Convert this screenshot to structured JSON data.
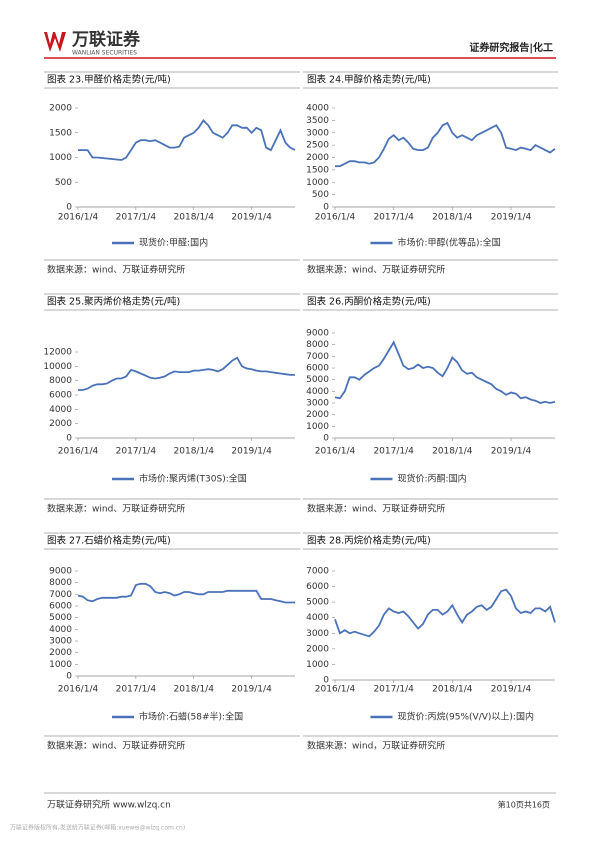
{
  "header": {
    "logo": "万联证券",
    "logo_en": "WANLIAN SECURITIES",
    "report": "证券研究报告|化工"
  },
  "footer": {
    "org": "万联证券研究所 www.wlzq.cn",
    "page": "第10页共16页",
    "copyright": "万联证券版权所有,发送给万联证券(邮箱:xuewei@wlzq.com.cn)"
  },
  "chart_data": [
    {
      "type": "line",
      "title": "图表 23.甲醛价格走势(元/吨)",
      "source": "数据来源：wind、万联证券研究所",
      "x": [
        "2016/1/4",
        "2016/2/4",
        "2016/3/4",
        "2016/4/4",
        "2016/5/4",
        "2016/6/4",
        "2016/7/4",
        "2016/8/4",
        "2016/9/4",
        "2016/10/4",
        "2016/11/4",
        "2016/12/4",
        "2017/1/4",
        "2017/2/4",
        "2017/3/4",
        "2017/4/4",
        "2017/5/4",
        "2017/6/4",
        "2017/7/4",
        "2017/8/4",
        "2017/9/4",
        "2017/10/4",
        "2017/11/4",
        "2017/12/4",
        "2018/1/4",
        "2018/2/4",
        "2018/3/4",
        "2018/4/4",
        "2018/5/4",
        "2018/6/4",
        "2018/7/4",
        "2018/8/4",
        "2018/9/4",
        "2018/10/4",
        "2018/11/4",
        "2018/12/4",
        "2019/1/4",
        "2019/2/4",
        "2019/3/4",
        "2019/4/4",
        "2019/5/4",
        "2019/6/4",
        "2019/7/4",
        "2019/8/4",
        "2019/9/4",
        "2019/10/4"
      ],
      "xticks": [
        "2016/1/4",
        "2017/1/4",
        "2018/1/4",
        "2019/1/4"
      ],
      "ylim": [
        0,
        2000
      ],
      "yticks": [
        0,
        500,
        1000,
        1500,
        2000
      ],
      "series": [
        {
          "name": "现货价:甲醛:国内",
          "color": "#4a72b8",
          "values": [
            1150,
            1150,
            1150,
            1000,
            1000,
            990,
            980,
            970,
            960,
            950,
            1000,
            1150,
            1300,
            1350,
            1350,
            1330,
            1350,
            1300,
            1250,
            1200,
            1200,
            1220,
            1400,
            1450,
            1500,
            1600,
            1750,
            1650,
            1500,
            1450,
            1400,
            1500,
            1650,
            1650,
            1600,
            1600,
            1500,
            1600,
            1550,
            1200,
            1150,
            1350,
            1550,
            1300,
            1200,
            1150
          ]
        }
      ]
    },
    {
      "type": "line",
      "title": "图表 24.甲醇价格走势(元/吨)",
      "source": "数据来源：wind、万联证券研究所",
      "x": [
        "2016/1/4",
        "2016/2/4",
        "2016/3/4",
        "2016/4/4",
        "2016/5/4",
        "2016/6/4",
        "2016/7/4",
        "2016/8/4",
        "2016/9/4",
        "2016/10/4",
        "2016/11/4",
        "2016/12/4",
        "2017/1/4",
        "2017/2/4",
        "2017/3/4",
        "2017/4/4",
        "2017/5/4",
        "2017/6/4",
        "2017/7/4",
        "2017/8/4",
        "2017/9/4",
        "2017/10/4",
        "2017/11/4",
        "2017/12/4",
        "2018/1/4",
        "2018/2/4",
        "2018/3/4",
        "2018/4/4",
        "2018/5/4",
        "2018/6/4",
        "2018/7/4",
        "2018/8/4",
        "2018/9/4",
        "2018/10/4",
        "2018/11/4",
        "2018/12/4",
        "2019/1/4",
        "2019/2/4",
        "2019/3/4",
        "2019/4/4",
        "2019/5/4",
        "2019/6/4",
        "2019/7/4",
        "2019/8/4",
        "2019/9/4",
        "2019/10/4"
      ],
      "xticks": [
        "2016/1/4",
        "2017/1/4",
        "2018/1/4",
        "2019/1/4"
      ],
      "ylim": [
        0,
        4000
      ],
      "yticks": [
        0,
        500,
        1000,
        1500,
        2000,
        2500,
        3000,
        3500,
        4000
      ],
      "series": [
        {
          "name": "市场价:甲醇(优等品):全国",
          "color": "#4a72b8",
          "values": [
            1650,
            1650,
            1750,
            1850,
            1850,
            1800,
            1800,
            1750,
            1800,
            2000,
            2350,
            2750,
            2900,
            2700,
            2800,
            2600,
            2350,
            2300,
            2300,
            2400,
            2800,
            3000,
            3300,
            3400,
            3000,
            2800,
            2900,
            2800,
            2700,
            2900,
            3000,
            3100,
            3200,
            3300,
            3000,
            2400,
            2350,
            2300,
            2400,
            2350,
            2300,
            2500,
            2400,
            2300,
            2200,
            2350
          ]
        }
      ]
    },
    {
      "type": "line",
      "title": "图表 25.聚丙烯价格走势(元/吨)",
      "source": "数据来源：wind、万联证券研究所",
      "x": [
        "2016/1/4",
        "2016/2/4",
        "2016/3/4",
        "2016/4/4",
        "2016/5/4",
        "2016/6/4",
        "2016/7/4",
        "2016/8/4",
        "2016/9/4",
        "2016/10/4",
        "2016/11/4",
        "2016/12/4",
        "2017/1/4",
        "2017/2/4",
        "2017/3/4",
        "2017/4/4",
        "2017/5/4",
        "2017/6/4",
        "2017/7/4",
        "2017/8/4",
        "2017/9/4",
        "2017/10/4",
        "2017/11/4",
        "2017/12/4",
        "2018/1/4",
        "2018/2/4",
        "2018/3/4",
        "2018/4/4",
        "2018/5/4",
        "2018/6/4",
        "2018/7/4",
        "2018/8/4",
        "2018/9/4",
        "2018/10/4",
        "2018/11/4",
        "2018/12/4",
        "2019/1/4",
        "2019/2/4",
        "2019/3/4",
        "2019/4/4",
        "2019/5/4",
        "2019/6/4",
        "2019/7/4",
        "2019/8/4",
        "2019/9/4",
        "2019/10/4"
      ],
      "xticks": [
        "2016/1/4",
        "2017/1/4",
        "2018/1/4",
        "2019/1/4"
      ],
      "ylim": [
        0,
        12000
      ],
      "yticks": [
        0,
        2000,
        4000,
        6000,
        8000,
        10000,
        12000
      ],
      "series": [
        {
          "name": "市场价:聚丙烯(T30S):全国",
          "color": "#4a72b8",
          "values": [
            6700,
            6700,
            6900,
            7300,
            7500,
            7500,
            7600,
            8000,
            8300,
            8300,
            8600,
            9500,
            9300,
            9000,
            8700,
            8400,
            8300,
            8400,
            8600,
            9000,
            9300,
            9200,
            9200,
            9200,
            9400,
            9400,
            9500,
            9600,
            9500,
            9300,
            9600,
            10200,
            10800,
            11200,
            10000,
            9700,
            9600,
            9400,
            9300,
            9300,
            9200,
            9100,
            9000,
            8900,
            8800,
            8800
          ]
        }
      ]
    },
    {
      "type": "line",
      "title": "图表 26.丙酮价格走势(元/吨)",
      "source": "数据来源：wind、万联证券研究所",
      "x": [
        "2016/1/4",
        "2016/2/4",
        "2016/3/4",
        "2016/4/4",
        "2016/5/4",
        "2016/6/4",
        "2016/7/4",
        "2016/8/4",
        "2016/9/4",
        "2016/10/4",
        "2016/11/4",
        "2016/12/4",
        "2017/1/4",
        "2017/2/4",
        "2017/3/4",
        "2017/4/4",
        "2017/5/4",
        "2017/6/4",
        "2017/7/4",
        "2017/8/4",
        "2017/9/4",
        "2017/10/4",
        "2017/11/4",
        "2017/12/4",
        "2018/1/4",
        "2018/2/4",
        "2018/3/4",
        "2018/4/4",
        "2018/5/4",
        "2018/6/4",
        "2018/7/4",
        "2018/8/4",
        "2018/9/4",
        "2018/10/4",
        "2018/11/4",
        "2018/12/4",
        "2019/1/4",
        "2019/2/4",
        "2019/3/4",
        "2019/4/4",
        "2019/5/4",
        "2019/6/4",
        "2019/7/4",
        "2019/8/4",
        "2019/9/4",
        "2019/10/4"
      ],
      "xticks": [
        "2016/1/4",
        "2017/1/4",
        "2018/1/4",
        "2019/1/4"
      ],
      "ylim": [
        0,
        9000
      ],
      "yticks": [
        0,
        1000,
        2000,
        3000,
        4000,
        5000,
        6000,
        7000,
        8000,
        9000
      ],
      "series": [
        {
          "name": "现货价:丙酮:国内",
          "color": "#4a72b8",
          "values": [
            3500,
            3400,
            4000,
            5200,
            5200,
            5000,
            5400,
            5700,
            6000,
            6200,
            6800,
            7500,
            8200,
            7200,
            6200,
            5900,
            6000,
            6300,
            6000,
            6100,
            6000,
            5600,
            5300,
            6000,
            6900,
            6500,
            5800,
            5500,
            5600,
            5200,
            5000,
            4800,
            4600,
            4200,
            4000,
            3700,
            3900,
            3800,
            3400,
            3500,
            3300,
            3200,
            3000,
            3100,
            3000,
            3100
          ]
        }
      ]
    },
    {
      "type": "line",
      "title": "图表 27.石蜡价格走势(元/吨)",
      "source": "数据来源：wind、万联证券研究所",
      "x": [
        "2016/1/4",
        "2016/2/4",
        "2016/3/4",
        "2016/4/4",
        "2016/5/4",
        "2016/6/4",
        "2016/7/4",
        "2016/8/4",
        "2016/9/4",
        "2016/10/4",
        "2016/11/4",
        "2016/12/4",
        "2017/1/4",
        "2017/2/4",
        "2017/3/4",
        "2017/4/4",
        "2017/5/4",
        "2017/6/4",
        "2017/7/4",
        "2017/8/4",
        "2017/9/4",
        "2017/10/4",
        "2017/11/4",
        "2017/12/4",
        "2018/1/4",
        "2018/2/4",
        "2018/3/4",
        "2018/4/4",
        "2018/5/4",
        "2018/6/4",
        "2018/7/4",
        "2018/8/4",
        "2018/9/4",
        "2018/10/4",
        "2018/11/4",
        "2018/12/4",
        "2019/1/4",
        "2019/2/4",
        "2019/3/4",
        "2019/4/4",
        "2019/5/4",
        "2019/6/4",
        "2019/7/4",
        "2019/8/4",
        "2019/9/4",
        "2019/10/4"
      ],
      "xticks": [
        "2016/1/4",
        "2017/1/4",
        "2018/1/4",
        "2019/1/4"
      ],
      "ylim": [
        0,
        9000
      ],
      "yticks": [
        0,
        1000,
        2000,
        3000,
        4000,
        5000,
        6000,
        7000,
        8000,
        9000
      ],
      "series": [
        {
          "name": "市场价:石蜡(58#半):全国",
          "color": "#4a72b8",
          "values": [
            6900,
            6800,
            6500,
            6400,
            6600,
            6700,
            6700,
            6700,
            6700,
            6800,
            6800,
            6900,
            7800,
            7900,
            7900,
            7700,
            7200,
            7100,
            7200,
            7100,
            6900,
            7000,
            7200,
            7200,
            7100,
            7000,
            7000,
            7200,
            7200,
            7200,
            7200,
            7300,
            7300,
            7300,
            7300,
            7300,
            7300,
            7300,
            6600,
            6600,
            6600,
            6500,
            6400,
            6300,
            6300,
            6300
          ]
        }
      ]
    },
    {
      "type": "line",
      "title": "图表 28.丙烷价格走势(元/吨)",
      "source": "数据来源：wind，万联证券研究所",
      "x": [
        "2016/1/4",
        "2016/2/4",
        "2016/3/4",
        "2016/4/4",
        "2016/5/4",
        "2016/6/4",
        "2016/7/4",
        "2016/8/4",
        "2016/9/4",
        "2016/10/4",
        "2016/11/4",
        "2016/12/4",
        "2017/1/4",
        "2017/2/4",
        "2017/3/4",
        "2017/4/4",
        "2017/5/4",
        "2017/6/4",
        "2017/7/4",
        "2017/8/4",
        "2017/9/4",
        "2017/10/4",
        "2017/11/4",
        "2017/12/4",
        "2018/1/4",
        "2018/2/4",
        "2018/3/4",
        "2018/4/4",
        "2018/5/4",
        "2018/6/4",
        "2018/7/4",
        "2018/8/4",
        "2018/9/4",
        "2018/10/4",
        "2018/11/4",
        "2018/12/4",
        "2019/1/4",
        "2019/2/4",
        "2019/3/4",
        "2019/4/4",
        "2019/5/4",
        "2019/6/4",
        "2019/7/4",
        "2019/8/4",
        "2019/9/4",
        "2019/10/4"
      ],
      "xticks": [
        "2016/1/4",
        "2017/1/4",
        "2018/1/4",
        "2019/1/4"
      ],
      "ylim": [
        0,
        7000
      ],
      "yticks": [
        0,
        1000,
        2000,
        3000,
        4000,
        5000,
        6000,
        7000
      ],
      "series": [
        {
          "name": "现货价:丙烷(95%(V/V)以上):国内",
          "color": "#4a72b8",
          "values": [
            3900,
            3000,
            3200,
            3000,
            3100,
            3000,
            2900,
            2800,
            3100,
            3500,
            4200,
            4600,
            4400,
            4300,
            4400,
            4100,
            3700,
            3300,
            3600,
            4200,
            4500,
            4500,
            4200,
            4400,
            4800,
            4200,
            3700,
            4200,
            4400,
            4700,
            4800,
            4500,
            4700,
            5200,
            5700,
            5800,
            5400,
            4600,
            4300,
            4400,
            4300,
            4600,
            4600,
            4400,
            4700,
            3700
          ]
        }
      ]
    }
  ]
}
